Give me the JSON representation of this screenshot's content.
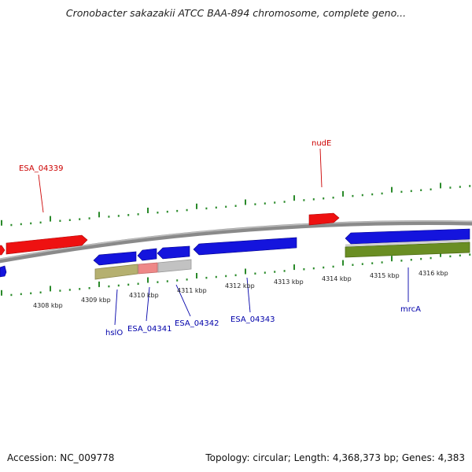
{
  "title": "Cronobacter sakazakii ATCC BAA-894 chromosome, complete geno...",
  "footer": {
    "accession": "Accession: NC_009778",
    "summary": "Topology: circular; Length: 4,368,373 bp; Genes: 4,383"
  },
  "colors": {
    "backbone": "#8a8a8a",
    "forward_gene": "#ee1111",
    "reverse_gene": "#1414dd",
    "gc_dots": "#2a8a2a",
    "feature_olive": "#6a8e23",
    "feature_tan": "#b5b070",
    "feature_pink": "#ee8888",
    "feature_grey": "#c2c2c2",
    "label_forward": "#cc0000",
    "label_reverse": "#0000aa"
  },
  "scale": {
    "unit": "kbp",
    "ticks": [
      "4308 kbp",
      "4309 kbp",
      "4310 kbp",
      "4311 kbp",
      "4312 kbp",
      "4313 kbp",
      "4314 kbp",
      "4315 kbp",
      "4316 kbp"
    ]
  },
  "gene_labels": {
    "forward": [
      "ESA_04339",
      "nudE"
    ],
    "reverse": [
      "hslO",
      "ESA_04341",
      "ESA_04342",
      "ESA_04343",
      "mrcA"
    ]
  },
  "genes": {
    "forward": [
      {
        "name": "ESA_04339",
        "start_kbp": 4307.5,
        "end_kbp": 4309.05
      },
      {
        "name": "nudE",
        "start_kbp": 4313.7,
        "end_kbp": 4314.3
      }
    ],
    "reverse": [
      {
        "name": "hslO",
        "start_kbp": 4309.2,
        "end_kbp": 4310.1
      },
      {
        "name": "ESA_04341",
        "start_kbp": 4310.15,
        "end_kbp": 4310.55
      },
      {
        "name": "ESA_04342",
        "start_kbp": 4310.6,
        "end_kbp": 4311.3
      },
      {
        "name": "ESA_04343",
        "start_kbp": 4311.4,
        "end_kbp": 4313.55
      },
      {
        "name": "mrcA",
        "start_kbp": 4314.45,
        "end_kbp": 4316.55
      }
    ]
  }
}
